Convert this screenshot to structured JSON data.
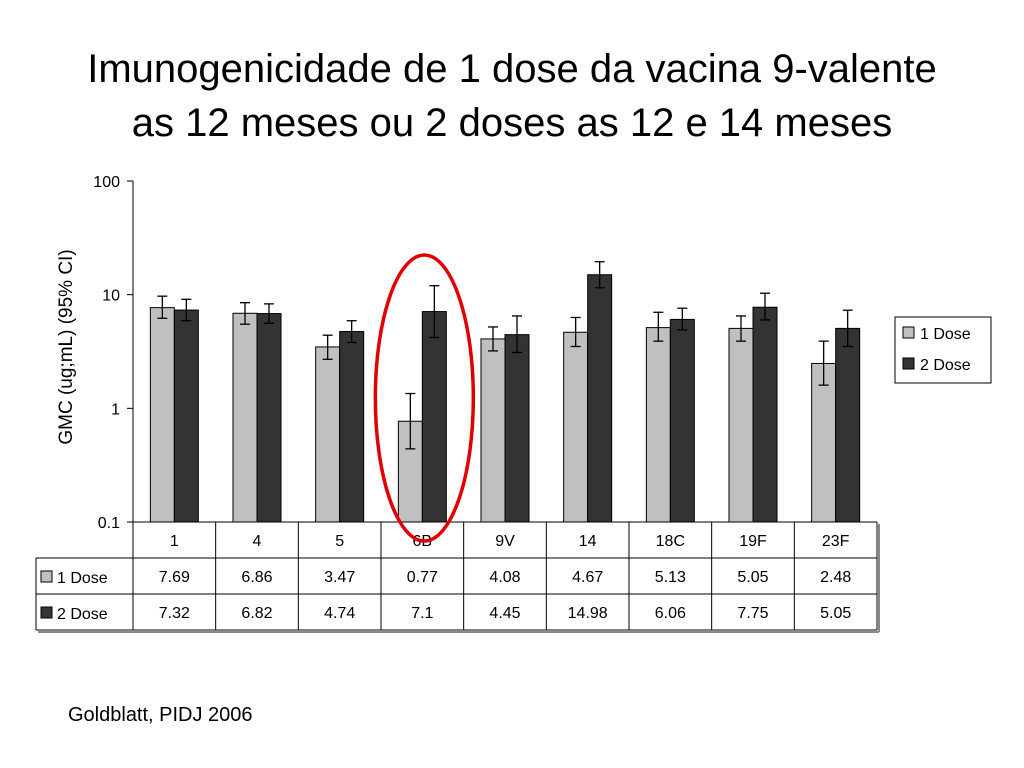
{
  "title": {
    "line1": "Imunogenicidade de 1 dose da vacina 9-valente",
    "line2": "as 12 meses ou 2 doses as 12 e 14 meses"
  },
  "source": "Goldblatt, PIDJ 2006",
  "chart_data": {
    "type": "bar",
    "yscale": "log",
    "ylim": [
      0.1,
      100
    ],
    "yticks": [
      "100",
      "10",
      "1",
      "0.1"
    ],
    "ytick_values": [
      100,
      10,
      1,
      0.1
    ],
    "ylabel": "GMC (ug;mL) (95% CI)",
    "xlabel": "",
    "grid": false,
    "legend_position": "right",
    "categories": [
      "1",
      "4",
      "5",
      "6B",
      "9V",
      "14",
      "18C",
      "19F",
      "23F"
    ],
    "series": [
      {
        "name": "1 Dose",
        "color": "#c0c0c0",
        "values": [
          7.69,
          6.86,
          3.47,
          0.77,
          4.08,
          4.67,
          5.13,
          5.05,
          2.48
        ],
        "labels": [
          "7.69",
          "6.86",
          "3.47",
          "0.77",
          "4.08",
          "4.67",
          "5.13",
          "5.05",
          "2.48"
        ],
        "ci_low": [
          6.2,
          5.5,
          2.7,
          0.44,
          3.2,
          3.5,
          3.9,
          3.9,
          1.6
        ],
        "ci_high": [
          9.7,
          8.5,
          4.4,
          1.35,
          5.2,
          6.3,
          7.0,
          6.5,
          3.9
        ]
      },
      {
        "name": "2 Dose",
        "color": "#333333",
        "values": [
          7.32,
          6.82,
          4.74,
          7.1,
          4.45,
          14.98,
          6.06,
          7.75,
          5.05
        ],
        "labels": [
          "7.32",
          "6.82",
          "4.74",
          "7.1",
          "4.45",
          "14.98",
          "6.06",
          "7.75",
          "5.05"
        ],
        "ci_low": [
          5.9,
          5.6,
          3.8,
          4.2,
          3.1,
          11.5,
          4.9,
          6.0,
          3.5
        ],
        "ci_high": [
          9.1,
          8.3,
          5.9,
          12.0,
          6.5,
          19.5,
          7.6,
          10.3,
          7.3
        ]
      }
    ],
    "annotation": {
      "shape": "ellipse",
      "color": "#e00000",
      "highlight_category": "6B"
    }
  }
}
